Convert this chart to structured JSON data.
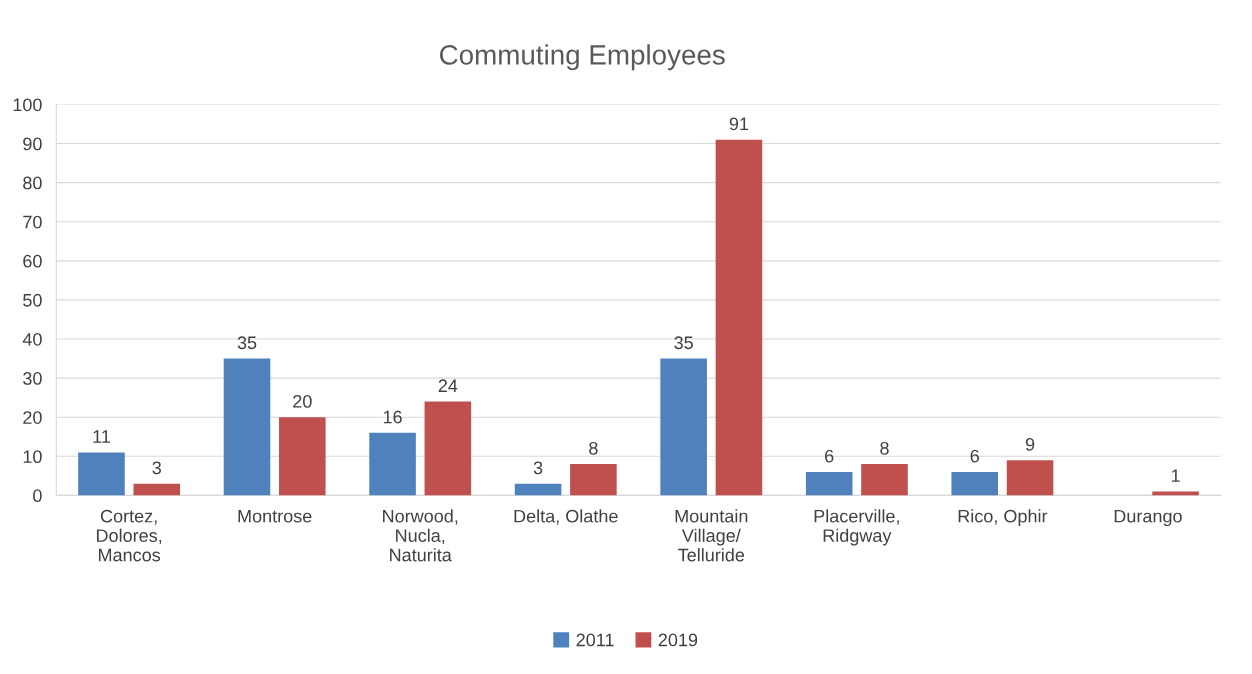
{
  "chart_data": {
    "type": "bar",
    "title": "Commuting Employees",
    "categories": [
      "Cortez,\nDolores,\nMancos",
      "Montrose",
      "Norwood,\nNucla,\nNaturita",
      "Delta, Olathe",
      "Mountain\nVillage/\nTelluride",
      "Placerville,\nRidgway",
      "Rico, Ophir",
      "Durango"
    ],
    "series": [
      {
        "name": "2011",
        "color": "#4f81bd",
        "values": [
          11,
          35,
          16,
          3,
          35,
          6,
          6,
          null
        ]
      },
      {
        "name": "2019",
        "color": "#c0504d",
        "values": [
          3,
          20,
          24,
          8,
          91,
          8,
          9,
          1
        ]
      }
    ],
    "ylim": [
      0,
      100
    ],
    "yticks": [
      0,
      10,
      20,
      30,
      40,
      50,
      60,
      70,
      80,
      90,
      100
    ],
    "grid": "y",
    "legend": "bottom",
    "data_labels": true
  }
}
